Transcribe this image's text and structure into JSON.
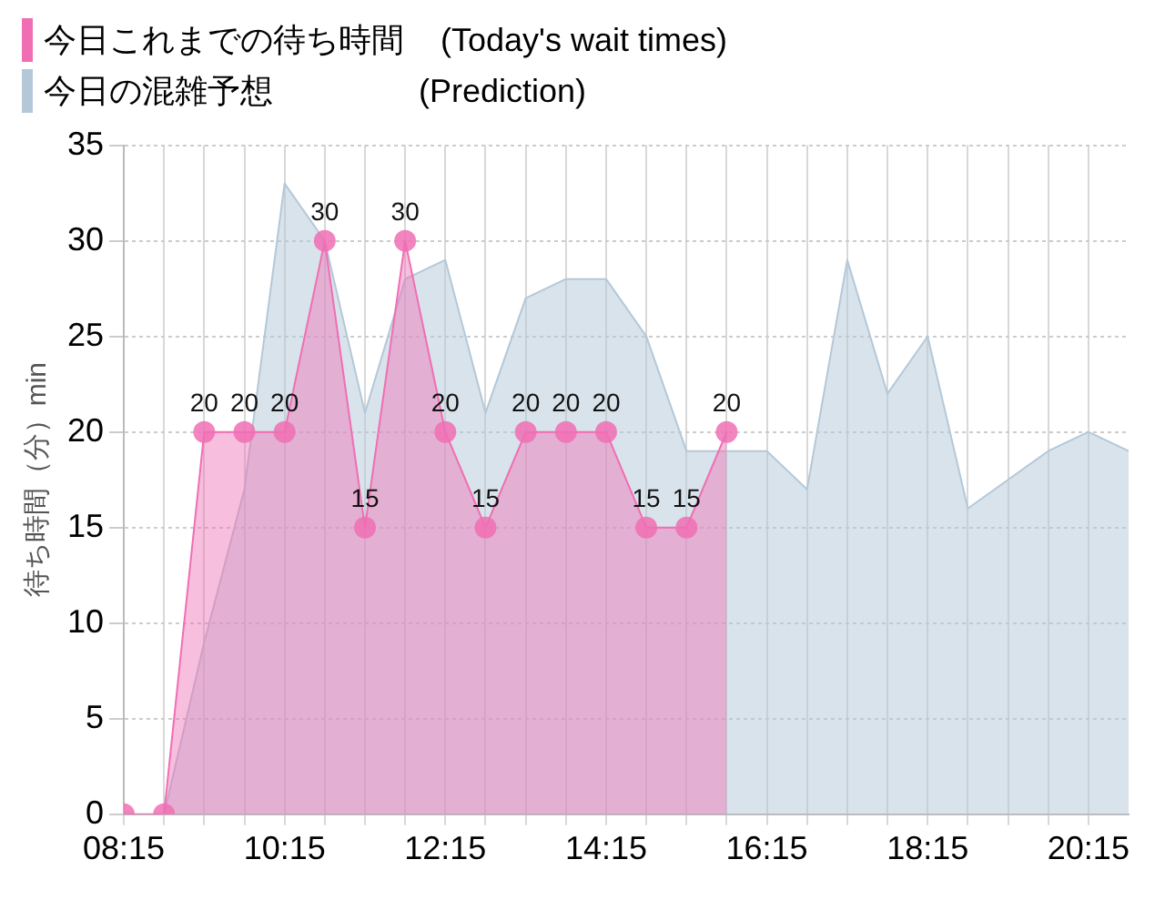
{
  "chart_data": {
    "type": "area",
    "ylabel": "待ち時間（分）min",
    "xlim": [
      8.25,
      20.75
    ],
    "xticks": [
      {
        "value": 8.25,
        "label": "08:15"
      },
      {
        "value": 8.75,
        "label": null
      },
      {
        "value": 9.25,
        "label": null
      },
      {
        "value": 9.75,
        "label": null
      },
      {
        "value": 10.25,
        "label": "10:15"
      },
      {
        "value": 10.75,
        "label": null
      },
      {
        "value": 11.25,
        "label": null
      },
      {
        "value": 11.75,
        "label": null
      },
      {
        "value": 12.25,
        "label": "12:15"
      },
      {
        "value": 12.75,
        "label": null
      },
      {
        "value": 13.25,
        "label": null
      },
      {
        "value": 13.75,
        "label": null
      },
      {
        "value": 14.25,
        "label": "14:15"
      },
      {
        "value": 14.75,
        "label": null
      },
      {
        "value": 15.25,
        "label": null
      },
      {
        "value": 15.75,
        "label": null
      },
      {
        "value": 16.25,
        "label": "16:15"
      },
      {
        "value": 16.75,
        "label": null
      },
      {
        "value": 17.25,
        "label": null
      },
      {
        "value": 17.75,
        "label": null
      },
      {
        "value": 18.25,
        "label": "18:15"
      },
      {
        "value": 18.75,
        "label": null
      },
      {
        "value": 19.25,
        "label": null
      },
      {
        "value": 19.75,
        "label": null
      },
      {
        "value": 20.25,
        "label": "20:15"
      }
    ],
    "ylim": [
      0,
      35
    ],
    "yticks": [
      0,
      5,
      10,
      15,
      20,
      25,
      30,
      35
    ],
    "grid": true,
    "legend": "top left",
    "marker": "circle",
    "series": [
      {
        "name": "今日これまでの待ち時間    (Today's wait times)",
        "color": "#f06eb4",
        "x": [
          8.25,
          8.75,
          9.25,
          9.75,
          10.25,
          10.75,
          11.25,
          11.75,
          12.25,
          12.75,
          13.25,
          13.75,
          14.25,
          14.75,
          15.25,
          15.75
        ],
        "values": [
          0,
          0,
          20,
          20,
          20,
          30,
          15,
          30,
          20,
          15,
          20,
          20,
          20,
          15,
          15,
          20
        ],
        "value_labels": [
          null,
          null,
          "20",
          "20",
          "20",
          "30",
          "15",
          "30",
          "20",
          "15",
          "20",
          "20",
          "20",
          "15",
          "15",
          "20"
        ]
      },
      {
        "name": "今日の混雑予想                (Prediction)",
        "color": "#b4c8d8",
        "marker": "none",
        "x": [
          8.75,
          9.25,
          9.75,
          10.25,
          10.75,
          11.25,
          11.75,
          12.25,
          12.75,
          13.25,
          13.75,
          14.25,
          14.75,
          15.25,
          15.75,
          16.25,
          16.75,
          17.25,
          17.75,
          18.25,
          18.75,
          19.25,
          19.75,
          20.25,
          20.75
        ],
        "values": [
          0,
          9,
          17,
          33,
          30,
          21,
          28,
          29,
          21,
          27,
          28,
          28,
          25,
          19,
          19,
          19,
          17,
          29,
          22,
          25,
          16,
          17.5,
          19,
          20,
          19
        ]
      }
    ]
  }
}
